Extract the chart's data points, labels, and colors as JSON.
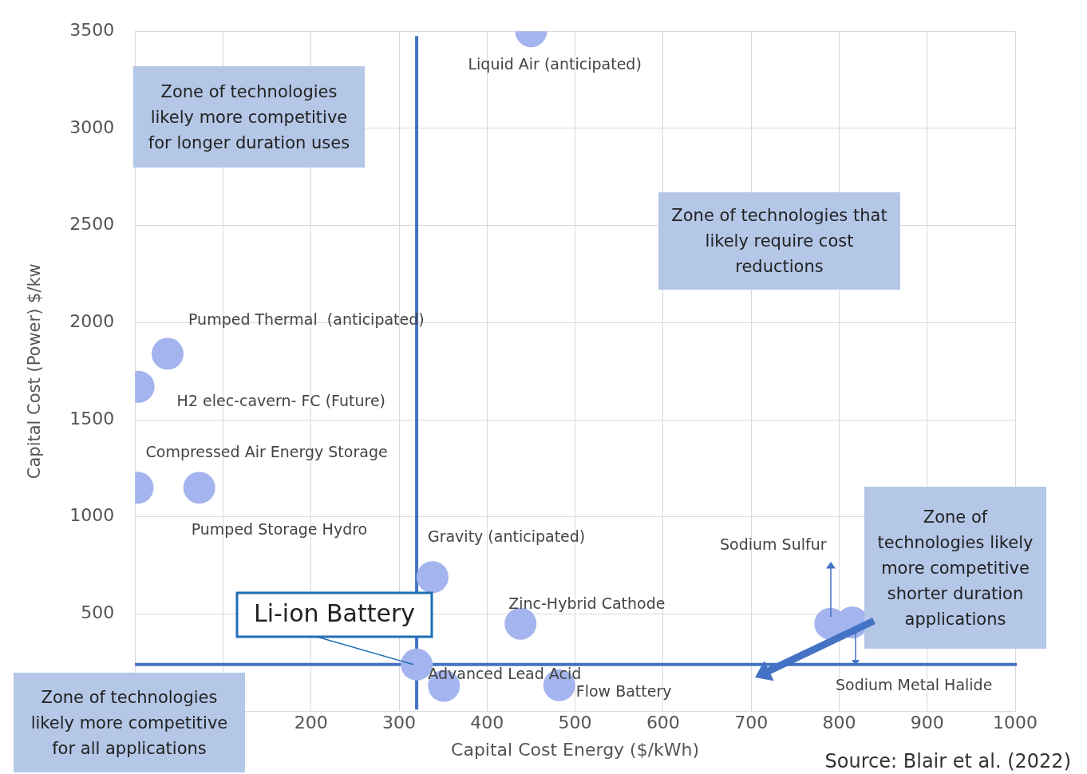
{
  "chart_data": {
    "type": "scatter",
    "xlabel": "Capital Cost Energy ($/kWh)",
    "ylabel": "Capital Cost (Power) $/kw",
    "x": [
      450,
      37,
      4,
      3,
      73,
      338,
      320,
      351,
      438,
      482,
      790,
      815
    ],
    "values": [
      3500,
      1840,
      1670,
      1150,
      1150,
      690,
      240,
      130,
      450,
      133,
      450,
      457
    ],
    "color": "#a4b4ee",
    "marker": "circle",
    "grid": true,
    "legend": false,
    "xlim": [
      0,
      1000
    ],
    "xticks": [
      {
        "value": 0,
        "label": null
      },
      {
        "value": 100,
        "label": null
      },
      200,
      300,
      400,
      500,
      600,
      700,
      800,
      900,
      1000
    ],
    "ylim": [
      0,
      3500
    ],
    "yticks": [
      {
        "value": 0,
        "label": null
      },
      500,
      1000,
      1500,
      2000,
      2500,
      3000,
      3500
    ],
    "ref_lines": [
      {
        "axis": "x",
        "value": 320,
        "color": "#4472c4"
      },
      {
        "axis": "y",
        "value": 240,
        "color": "#4472c4"
      }
    ],
    "annotations": [
      {
        "text": "Liquid Air (anticipated)",
        "x": 450,
        "y": 3500
      },
      {
        "text": "Pumped Thermal  (anticipated)",
        "x": 37,
        "y": 1840
      },
      {
        "text": "H2 elec-cavern- FC (Future)",
        "x": 4,
        "y": 1670
      },
      {
        "text": "Compressed Air Energy Storage",
        "x": 3,
        "y": 1150
      },
      {
        "text": "Pumped Storage Hydro",
        "x": 73,
        "y": 1150
      },
      {
        "text": "Gravity (anticipated)",
        "x": 338,
        "y": 690
      },
      {
        "text": "Li-ion Battery",
        "x": 320,
        "y": 240
      },
      {
        "text": "Advanced Lead Acid",
        "x": 351,
        "y": 130
      },
      {
        "text": "Zinc-Hybrid Cathode",
        "x": 438,
        "y": 450
      },
      {
        "text": "Flow Battery",
        "x": 482,
        "y": 133
      },
      "Sodium Sulfur",
      "Sodium Metal Halide",
      "Zone of technologies likely more competitive for longer duration uses",
      "Zone of technologies that likely require cost reductions",
      "Zone of technologies likely more competitive shorter duration applications",
      "Zone of technologies likely more competitive for all applications",
      "Source: Blair et al. (2022)"
    ]
  }
}
